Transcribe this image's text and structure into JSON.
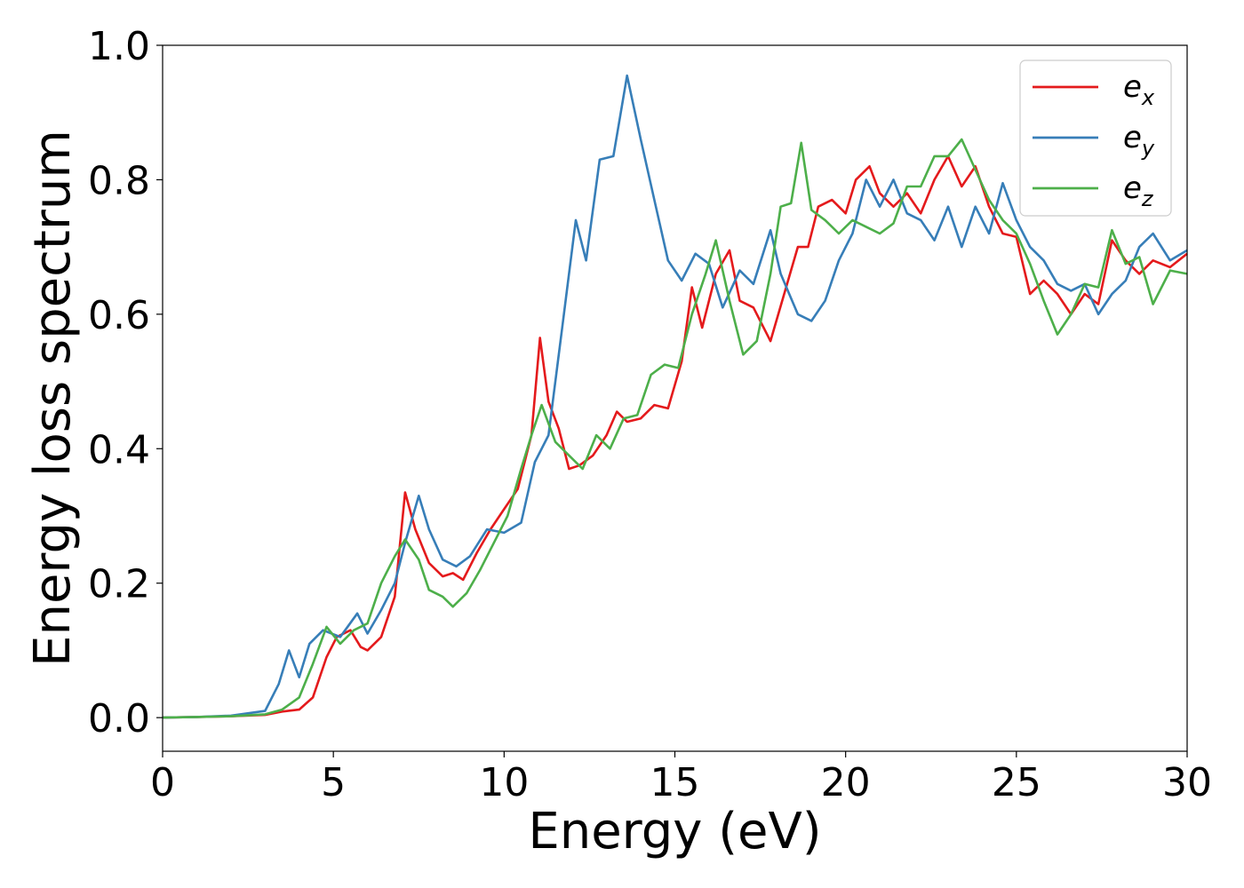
{
  "chart_data": {
    "type": "line",
    "title": "",
    "xlabel": "Energy (eV)",
    "ylabel": "Energy loss spectrum",
    "xlim": [
      0,
      30
    ],
    "ylim": [
      -0.05,
      1.0
    ],
    "xticks": [
      0,
      5,
      10,
      15,
      20,
      25,
      30
    ],
    "yticks": [
      0.0,
      0.2,
      0.4,
      0.6,
      0.8,
      1.0
    ],
    "xtick_labels": [
      "0",
      "5",
      "10",
      "15",
      "20",
      "25",
      "30"
    ],
    "ytick_labels": [
      "0.0",
      "0.2",
      "0.4",
      "0.6",
      "0.8",
      "1.0"
    ],
    "grid": false,
    "legend_position": "top-right",
    "series": [
      {
        "name": "e",
        "subscript": "x",
        "color": "#e41a1c",
        "points": [
          [
            0,
            0
          ],
          [
            1,
            0.001
          ],
          [
            2,
            0.002
          ],
          [
            3,
            0.004
          ],
          [
            3.5,
            0.009
          ],
          [
            4,
            0.012
          ],
          [
            4.4,
            0.03
          ],
          [
            4.8,
            0.09
          ],
          [
            5.1,
            0.12
          ],
          [
            5.5,
            0.13
          ],
          [
            5.8,
            0.105
          ],
          [
            6,
            0.1
          ],
          [
            6.4,
            0.12
          ],
          [
            6.8,
            0.18
          ],
          [
            7.1,
            0.335
          ],
          [
            7.4,
            0.28
          ],
          [
            7.8,
            0.23
          ],
          [
            8.2,
            0.21
          ],
          [
            8.5,
            0.215
          ],
          [
            8.8,
            0.205
          ],
          [
            9.2,
            0.245
          ],
          [
            9.6,
            0.28
          ],
          [
            10,
            0.31
          ],
          [
            10.4,
            0.34
          ],
          [
            10.8,
            0.42
          ],
          [
            11.05,
            0.565
          ],
          [
            11.3,
            0.47
          ],
          [
            11.6,
            0.43
          ],
          [
            11.9,
            0.37
          ],
          [
            12.2,
            0.375
          ],
          [
            12.6,
            0.39
          ],
          [
            13,
            0.42
          ],
          [
            13.3,
            0.455
          ],
          [
            13.6,
            0.44
          ],
          [
            14,
            0.445
          ],
          [
            14.4,
            0.465
          ],
          [
            14.8,
            0.46
          ],
          [
            15.2,
            0.53
          ],
          [
            15.5,
            0.64
          ],
          [
            15.8,
            0.58
          ],
          [
            16.2,
            0.66
          ],
          [
            16.6,
            0.695
          ],
          [
            16.9,
            0.62
          ],
          [
            17.3,
            0.61
          ],
          [
            17.8,
            0.56
          ],
          [
            18.2,
            0.63
          ],
          [
            18.6,
            0.7
          ],
          [
            18.9,
            0.7
          ],
          [
            19.2,
            0.76
          ],
          [
            19.6,
            0.77
          ],
          [
            20,
            0.75
          ],
          [
            20.3,
            0.8
          ],
          [
            20.7,
            0.82
          ],
          [
            21,
            0.78
          ],
          [
            21.4,
            0.76
          ],
          [
            21.8,
            0.78
          ],
          [
            22.2,
            0.75
          ],
          [
            22.6,
            0.8
          ],
          [
            23,
            0.835
          ],
          [
            23.4,
            0.79
          ],
          [
            23.8,
            0.82
          ],
          [
            24.2,
            0.76
          ],
          [
            24.6,
            0.72
          ],
          [
            25,
            0.715
          ],
          [
            25.4,
            0.63
          ],
          [
            25.8,
            0.65
          ],
          [
            26.2,
            0.63
          ],
          [
            26.6,
            0.6
          ],
          [
            27,
            0.63
          ],
          [
            27.4,
            0.615
          ],
          [
            27.8,
            0.71
          ],
          [
            28.2,
            0.68
          ],
          [
            28.6,
            0.66
          ],
          [
            29,
            0.68
          ],
          [
            29.5,
            0.67
          ],
          [
            30,
            0.69
          ]
        ]
      },
      {
        "name": "e",
        "subscript": "y",
        "color": "#377eb8",
        "points": [
          [
            0,
            0
          ],
          [
            1,
            0.001
          ],
          [
            2,
            0.003
          ],
          [
            3,
            0.01
          ],
          [
            3.4,
            0.05
          ],
          [
            3.7,
            0.1
          ],
          [
            4,
            0.06
          ],
          [
            4.3,
            0.11
          ],
          [
            4.7,
            0.13
          ],
          [
            5.2,
            0.12
          ],
          [
            5.7,
            0.155
          ],
          [
            6,
            0.125
          ],
          [
            6.4,
            0.16
          ],
          [
            6.8,
            0.2
          ],
          [
            7.1,
            0.26
          ],
          [
            7.5,
            0.33
          ],
          [
            7.8,
            0.28
          ],
          [
            8.2,
            0.235
          ],
          [
            8.6,
            0.225
          ],
          [
            9,
            0.24
          ],
          [
            9.5,
            0.28
          ],
          [
            10,
            0.275
          ],
          [
            10.5,
            0.29
          ],
          [
            10.9,
            0.38
          ],
          [
            11.3,
            0.42
          ],
          [
            11.7,
            0.58
          ],
          [
            12.1,
            0.74
          ],
          [
            12.4,
            0.68
          ],
          [
            12.8,
            0.83
          ],
          [
            13.2,
            0.835
          ],
          [
            13.6,
            0.955
          ],
          [
            14,
            0.86
          ],
          [
            14.4,
            0.77
          ],
          [
            14.8,
            0.68
          ],
          [
            15.2,
            0.65
          ],
          [
            15.6,
            0.69
          ],
          [
            16,
            0.675
          ],
          [
            16.4,
            0.61
          ],
          [
            16.9,
            0.665
          ],
          [
            17.3,
            0.645
          ],
          [
            17.8,
            0.725
          ],
          [
            18.1,
            0.66
          ],
          [
            18.6,
            0.6
          ],
          [
            19,
            0.59
          ],
          [
            19.4,
            0.62
          ],
          [
            19.8,
            0.68
          ],
          [
            20.2,
            0.72
          ],
          [
            20.6,
            0.8
          ],
          [
            21,
            0.76
          ],
          [
            21.4,
            0.8
          ],
          [
            21.8,
            0.75
          ],
          [
            22.2,
            0.74
          ],
          [
            22.6,
            0.71
          ],
          [
            23,
            0.76
          ],
          [
            23.4,
            0.7
          ],
          [
            23.8,
            0.76
          ],
          [
            24.2,
            0.72
          ],
          [
            24.6,
            0.795
          ],
          [
            25,
            0.74
          ],
          [
            25.4,
            0.7
          ],
          [
            25.8,
            0.68
          ],
          [
            26.2,
            0.645
          ],
          [
            26.6,
            0.635
          ],
          [
            27,
            0.645
          ],
          [
            27.4,
            0.6
          ],
          [
            27.8,
            0.63
          ],
          [
            28.2,
            0.65
          ],
          [
            28.6,
            0.7
          ],
          [
            29,
            0.72
          ],
          [
            29.5,
            0.68
          ],
          [
            30,
            0.695
          ]
        ]
      },
      {
        "name": "e",
        "subscript": "z",
        "color": "#4daf4a",
        "points": [
          [
            0,
            0
          ],
          [
            1,
            0.001
          ],
          [
            2,
            0.002
          ],
          [
            3,
            0.005
          ],
          [
            3.5,
            0.012
          ],
          [
            4,
            0.03
          ],
          [
            4.4,
            0.08
          ],
          [
            4.8,
            0.135
          ],
          [
            5.2,
            0.11
          ],
          [
            5.6,
            0.13
          ],
          [
            6,
            0.14
          ],
          [
            6.4,
            0.2
          ],
          [
            6.8,
            0.24
          ],
          [
            7.1,
            0.265
          ],
          [
            7.5,
            0.235
          ],
          [
            7.8,
            0.19
          ],
          [
            8.2,
            0.18
          ],
          [
            8.5,
            0.165
          ],
          [
            8.9,
            0.185
          ],
          [
            9.3,
            0.22
          ],
          [
            9.7,
            0.26
          ],
          [
            10.1,
            0.3
          ],
          [
            10.5,
            0.37
          ],
          [
            10.8,
            0.42
          ],
          [
            11.1,
            0.465
          ],
          [
            11.5,
            0.41
          ],
          [
            11.9,
            0.39
          ],
          [
            12.3,
            0.37
          ],
          [
            12.7,
            0.42
          ],
          [
            13.1,
            0.4
          ],
          [
            13.5,
            0.445
          ],
          [
            13.9,
            0.45
          ],
          [
            14.3,
            0.51
          ],
          [
            14.7,
            0.525
          ],
          [
            15.1,
            0.52
          ],
          [
            15.5,
            0.6
          ],
          [
            15.9,
            0.66
          ],
          [
            16.2,
            0.71
          ],
          [
            16.6,
            0.62
          ],
          [
            17,
            0.54
          ],
          [
            17.4,
            0.56
          ],
          [
            17.8,
            0.66
          ],
          [
            18.1,
            0.76
          ],
          [
            18.4,
            0.765
          ],
          [
            18.7,
            0.855
          ],
          [
            19,
            0.755
          ],
          [
            19.4,
            0.74
          ],
          [
            19.8,
            0.72
          ],
          [
            20.2,
            0.74
          ],
          [
            20.6,
            0.73
          ],
          [
            21,
            0.72
          ],
          [
            21.4,
            0.735
          ],
          [
            21.8,
            0.79
          ],
          [
            22.2,
            0.79
          ],
          [
            22.6,
            0.835
          ],
          [
            23,
            0.835
          ],
          [
            23.4,
            0.86
          ],
          [
            23.8,
            0.815
          ],
          [
            24.2,
            0.77
          ],
          [
            24.6,
            0.74
          ],
          [
            25,
            0.72
          ],
          [
            25.4,
            0.675
          ],
          [
            25.8,
            0.62
          ],
          [
            26.2,
            0.57
          ],
          [
            26.6,
            0.6
          ],
          [
            27,
            0.645
          ],
          [
            27.4,
            0.64
          ],
          [
            27.8,
            0.725
          ],
          [
            28.2,
            0.675
          ],
          [
            28.6,
            0.685
          ],
          [
            29,
            0.615
          ],
          [
            29.5,
            0.665
          ],
          [
            30,
            0.66
          ]
        ]
      }
    ]
  }
}
